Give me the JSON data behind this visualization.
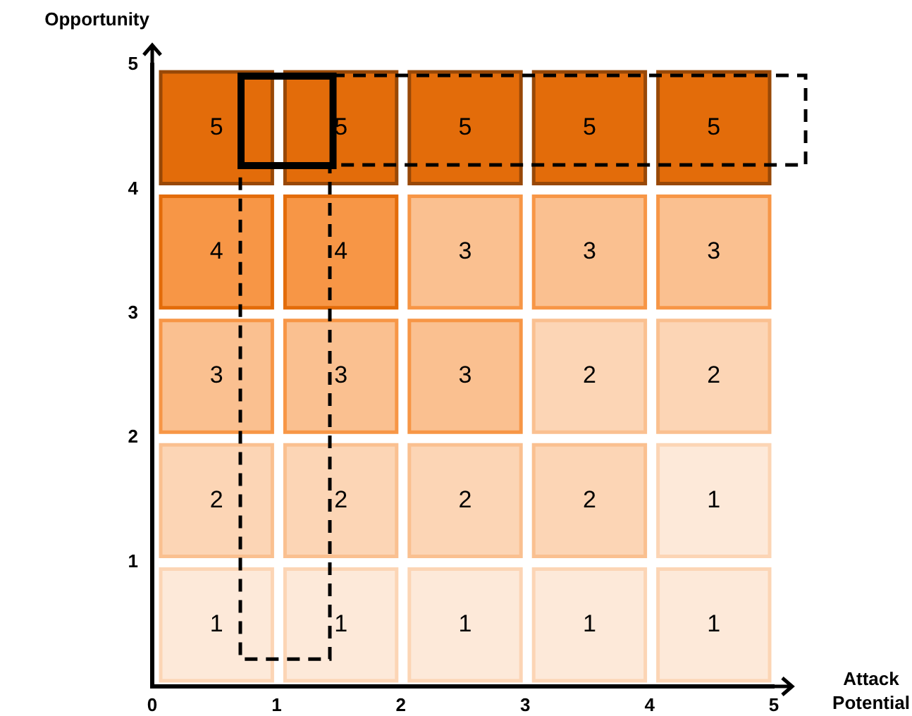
{
  "chart_data": {
    "type": "heatmap",
    "xlabel": "Attack Potential",
    "ylabel": "Opportunity",
    "data_labels": true,
    "cells": [
      [
        5,
        5,
        5,
        5,
        5
      ],
      [
        4,
        4,
        3,
        3,
        3
      ],
      [
        3,
        3,
        3,
        2,
        2
      ],
      [
        2,
        2,
        2,
        2,
        1
      ],
      [
        1,
        1,
        1,
        1,
        1
      ]
    ],
    "xlim": [
      0,
      5
    ],
    "xticks": [
      0,
      1,
      2,
      3,
      4,
      5
    ],
    "ylim": [
      0,
      5
    ],
    "yticks": [
      1,
      2,
      3,
      4,
      5
    ],
    "grid": false,
    "legend": false
  }
}
